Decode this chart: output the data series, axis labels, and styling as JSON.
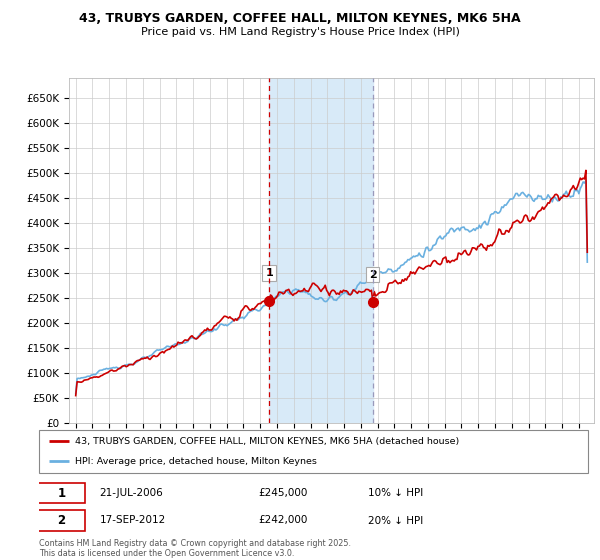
{
  "title_line1": "43, TRUBYS GARDEN, COFFEE HALL, MILTON KEYNES, MK6 5HA",
  "title_line2": "Price paid vs. HM Land Registry's House Price Index (HPI)",
  "yticks": [
    0,
    50000,
    100000,
    150000,
    200000,
    250000,
    300000,
    350000,
    400000,
    450000,
    500000,
    550000,
    600000,
    650000
  ],
  "ytick_labels": [
    "£0",
    "£50K",
    "£100K",
    "£150K",
    "£200K",
    "£250K",
    "£300K",
    "£350K",
    "£400K",
    "£450K",
    "£500K",
    "£550K",
    "£600K",
    "£650K"
  ],
  "hpi_color": "#6ab0e0",
  "price_color": "#cc0000",
  "vline1_color": "#cc0000",
  "vline2_color": "#9999bb",
  "purchase1_year": 2006.55,
  "purchase1_price": 245000,
  "purchase2_year": 2012.72,
  "purchase2_price": 242000,
  "legend_label1": "43, TRUBYS GARDEN, COFFEE HALL, MILTON KEYNES, MK6 5HA (detached house)",
  "legend_label2": "HPI: Average price, detached house, Milton Keynes",
  "footer": "Contains HM Land Registry data © Crown copyright and database right 2025.\nThis data is licensed under the Open Government Licence v3.0.",
  "background_color": "#ffffff",
  "grid_color": "#cccccc",
  "shaded_color": "#d8eaf8"
}
